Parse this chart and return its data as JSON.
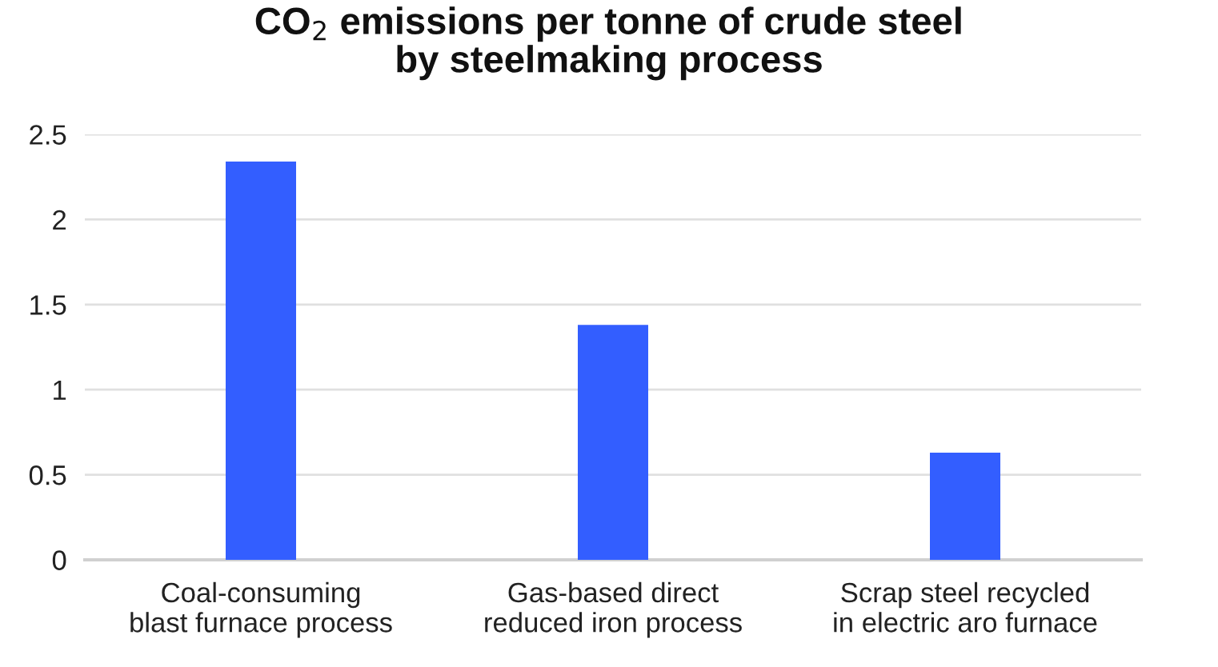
{
  "chart_data": {
    "type": "bar",
    "title": "CO$_{2}$ emissions per tonne of crude steel\nby steelmaking process",
    "categories": [
      "Coal-consuming\nblast furnace process",
      "Gas-based direct\nreduced iron process",
      "Scrap steel recycled\nin electric aro furnace"
    ],
    "values": [
      2.34,
      1.38,
      0.63
    ],
    "color": "#335eff",
    "ylim": [
      0,
      2.5
    ],
    "yticks": [
      0,
      0.5,
      1,
      1.5,
      2,
      2.5
    ],
    "grid": "y"
  }
}
